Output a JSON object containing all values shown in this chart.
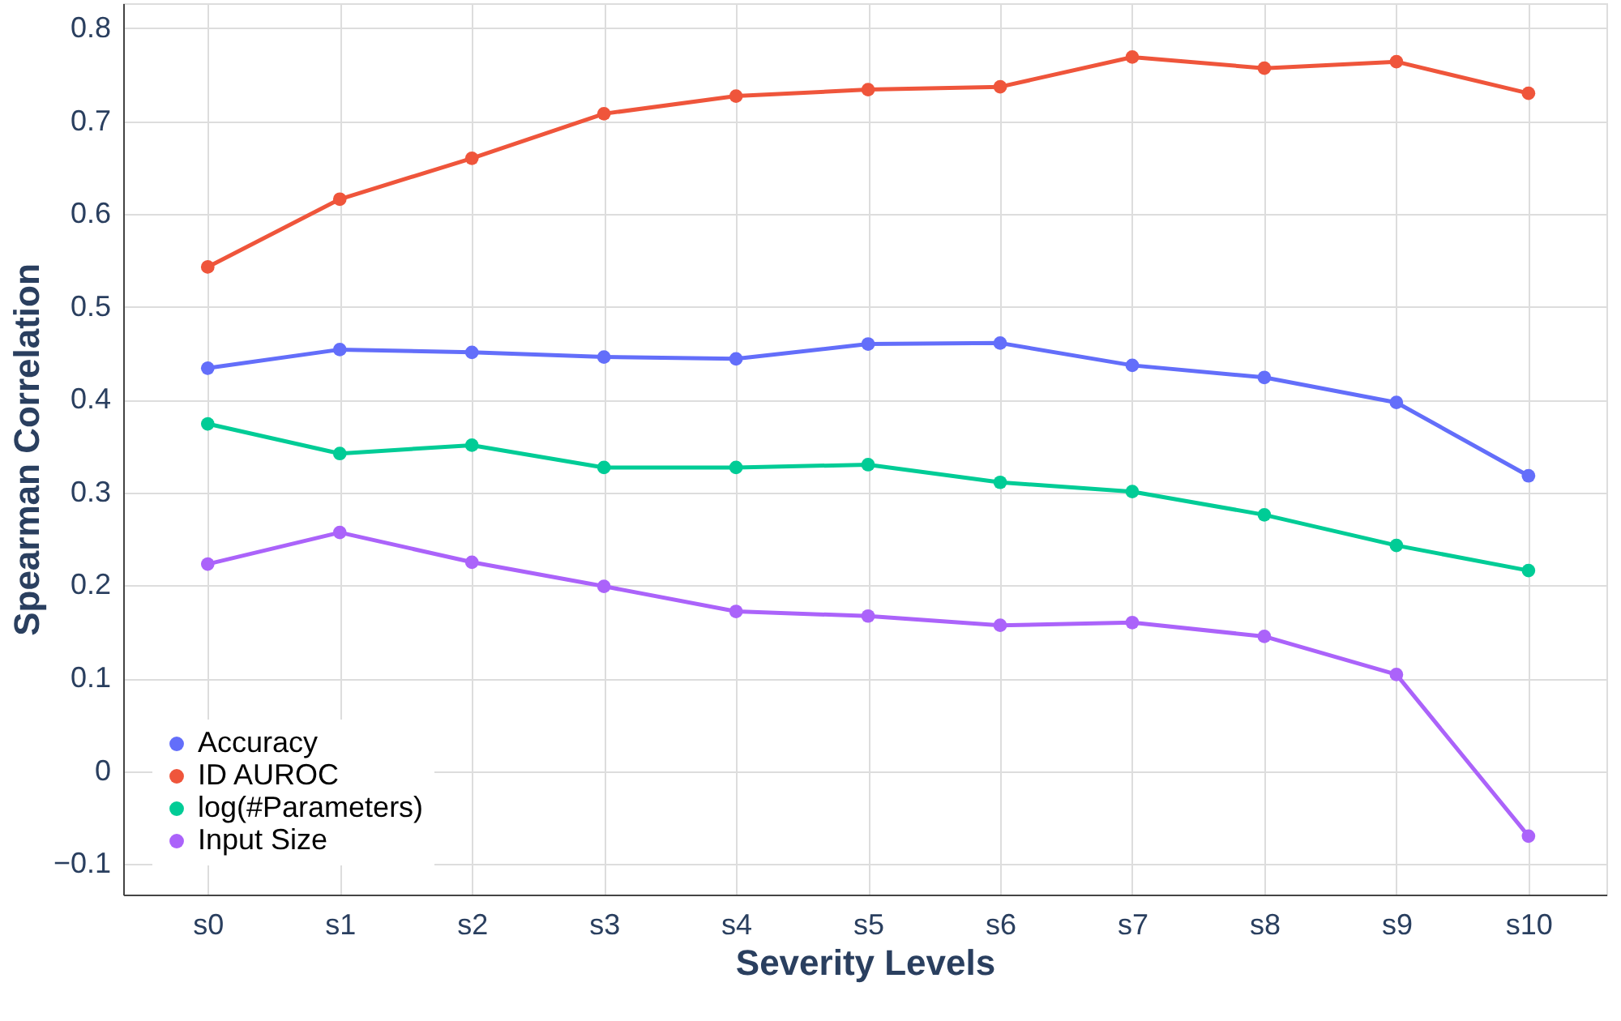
{
  "chart_data": {
    "type": "line",
    "xlabel": "Severity Levels",
    "ylabel": "Spearman Correlation",
    "categories": [
      "s0",
      "s1",
      "s2",
      "s3",
      "s4",
      "s5",
      "s6",
      "s7",
      "s8",
      "s9",
      "s10"
    ],
    "series": [
      {
        "name": "Accuracy",
        "color": "#636efa",
        "values": [
          0.434,
          0.454,
          0.451,
          0.446,
          0.444,
          0.46,
          0.461,
          0.437,
          0.424,
          0.397,
          0.318
        ]
      },
      {
        "name": "ID AUROC",
        "color": "#ef553b",
        "values": [
          0.543,
          0.616,
          0.66,
          0.708,
          0.727,
          0.734,
          0.737,
          0.769,
          0.757,
          0.764,
          0.73
        ]
      },
      {
        "name": "log(#Parameters)",
        "color": "#00cc96",
        "values": [
          0.374,
          0.342,
          0.351,
          0.327,
          0.327,
          0.33,
          0.311,
          0.301,
          0.276,
          0.243,
          0.216
        ]
      },
      {
        "name": "Input Size",
        "color": "#ab63fa",
        "values": [
          0.223,
          0.257,
          0.225,
          0.199,
          0.172,
          0.167,
          0.157,
          0.16,
          0.145,
          0.104,
          -0.07
        ]
      }
    ],
    "ylim": [
      -0.133,
      0.827
    ],
    "yticks": [
      {
        "value": -0.1,
        "label": "−0.1"
      },
      0,
      0.1,
      0.2,
      0.3,
      0.4,
      0.5,
      0.6,
      0.7,
      0.8
    ],
    "grid": true,
    "legend": "bottom left",
    "marker": "circle",
    "line_style": "solid"
  }
}
